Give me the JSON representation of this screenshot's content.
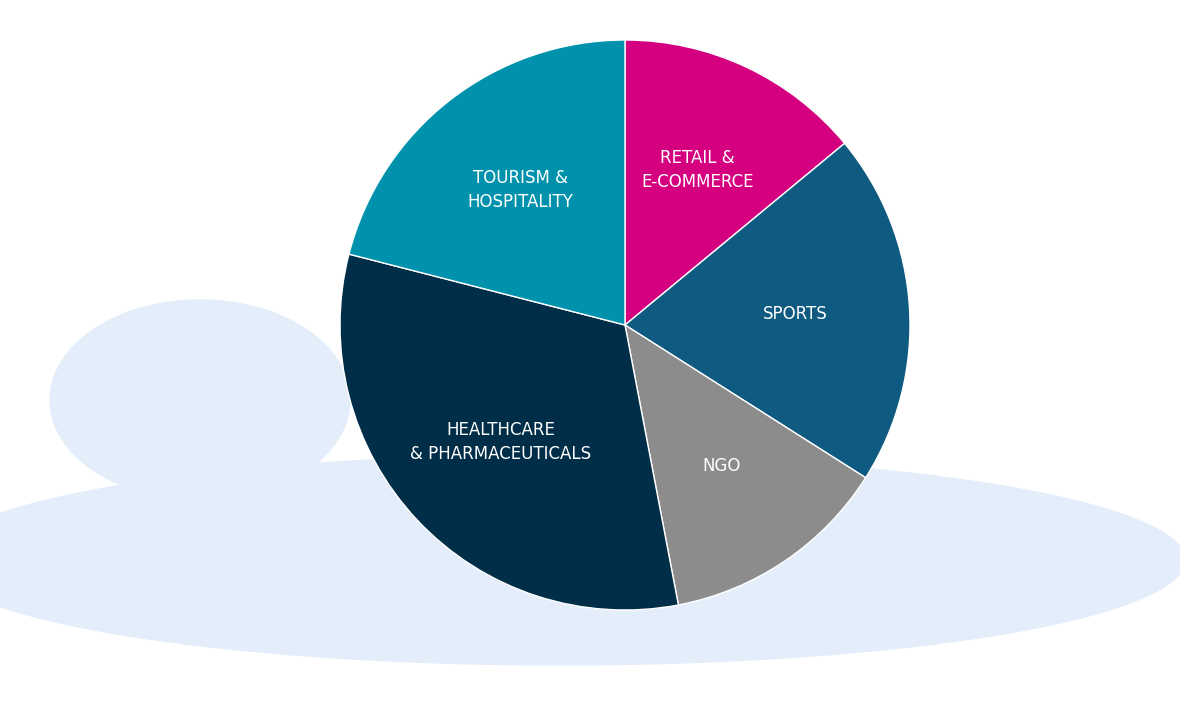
{
  "chart_data": {
    "type": "pie",
    "categories": [
      "RETAIL &\nE-COMMERCE",
      "SPORTS",
      "NGO",
      "HEALTHCARE\n& PHARMACEUTICALS",
      "TOURISM &\nHOSPITALITY"
    ],
    "values": [
      14,
      20,
      13,
      32,
      21
    ],
    "colors": [
      "#d4007f",
      "#0f5a80",
      "#8c8c8c",
      "#002d47",
      "#0091ad"
    ]
  }
}
